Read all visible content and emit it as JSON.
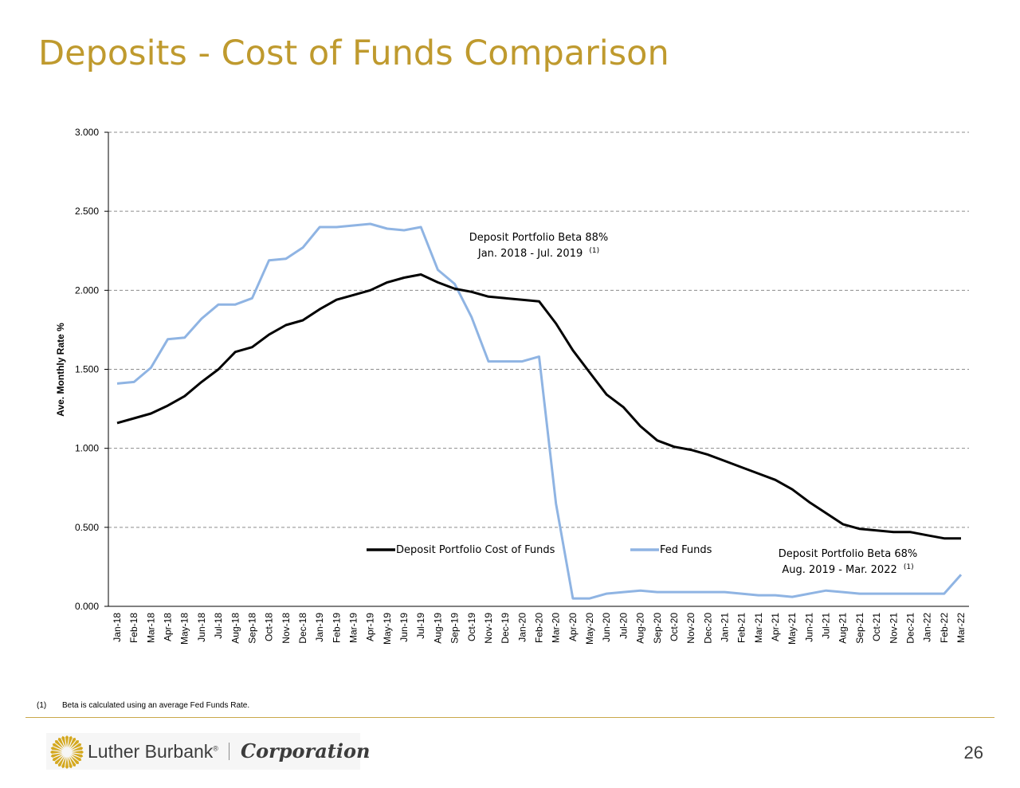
{
  "slide": {
    "title": "Deposits - Cost of Funds Comparison",
    "footnote_marker": "(1)",
    "footnote_text": "Beta is calculated using an average Fed Funds Rate.",
    "page_number": "26"
  },
  "logo": {
    "brand": "Luther Burbank",
    "registered": "®",
    "division": "Corporation"
  },
  "colors": {
    "title": "#bf9a2e",
    "deposit_series": "#000000",
    "fed_series": "#8fb4e3",
    "grid": "#8c8c8c",
    "divider": "#c9a84a"
  },
  "chart_data": {
    "type": "line",
    "title": "",
    "xlabel": "",
    "ylabel": "Ave. Monthly Rate %",
    "ylim": [
      0,
      3
    ],
    "yticks": [
      "0.000",
      "0.500",
      "1.000",
      "1.500",
      "2.000",
      "2.500",
      "3.000"
    ],
    "grid": "horizontal dashed",
    "legend_placement": "inside-bottom",
    "categories": [
      "Jan-18",
      "Feb-18",
      "Mar-18",
      "Apr-18",
      "May-18",
      "Jun-18",
      "Jul-18",
      "Aug-18",
      "Sep-18",
      "Oct-18",
      "Nov-18",
      "Dec-18",
      "Jan-19",
      "Feb-19",
      "Mar-19",
      "Apr-19",
      "May-19",
      "Jun-19",
      "Jul-19",
      "Aug-19",
      "Sep-19",
      "Oct-19",
      "Nov-19",
      "Dec-19",
      "Jan-20",
      "Feb-20",
      "Mar-20",
      "Apr-20",
      "May-20",
      "Jun-20",
      "Jul-20",
      "Aug-20",
      "Sep-20",
      "Oct-20",
      "Nov-20",
      "Dec-20",
      "Jan-21",
      "Feb-21",
      "Mar-21",
      "Apr-21",
      "May-21",
      "Jun-21",
      "Jul-21",
      "Aug-21",
      "Sep-21",
      "Oct-21",
      "Nov-21",
      "Dec-21",
      "Jan-22",
      "Feb-22",
      "Mar-22"
    ],
    "series": [
      {
        "name": "Deposit Portfolio Cost of Funds",
        "values": [
          1.16,
          1.19,
          1.22,
          1.27,
          1.33,
          1.42,
          1.5,
          1.61,
          1.64,
          1.72,
          1.78,
          1.81,
          1.88,
          1.94,
          1.97,
          2.0,
          2.05,
          2.08,
          2.1,
          2.05,
          2.01,
          1.99,
          1.96,
          1.95,
          1.94,
          1.93,
          1.79,
          1.62,
          1.48,
          1.34,
          1.26,
          1.14,
          1.05,
          1.01,
          0.99,
          0.96,
          0.92,
          0.88,
          0.84,
          0.8,
          0.74,
          0.66,
          0.59,
          0.52,
          0.49,
          0.48,
          0.47,
          0.47,
          0.45,
          0.43,
          0.43
        ]
      },
      {
        "name": "Fed Funds",
        "values": [
          1.41,
          1.42,
          1.51,
          1.69,
          1.7,
          1.82,
          1.91,
          1.91,
          1.95,
          2.19,
          2.2,
          2.27,
          2.4,
          2.4,
          2.41,
          2.42,
          2.39,
          2.38,
          2.4,
          2.13,
          2.04,
          1.83,
          1.55,
          1.55,
          1.55,
          1.58,
          0.65,
          0.05,
          0.05,
          0.08,
          0.09,
          0.1,
          0.09,
          0.09,
          0.09,
          0.09,
          0.09,
          0.08,
          0.07,
          0.07,
          0.06,
          0.08,
          0.1,
          0.09,
          0.08,
          0.08,
          0.08,
          0.08,
          0.08,
          0.08,
          0.2
        ]
      }
    ],
    "annotations": [
      {
        "line1": "Deposit Portfolio Beta 88%",
        "line2": "Jan. 2018 - Jul. 2019",
        "superscript": "(1)"
      },
      {
        "line1": "Deposit Portfolio Beta 68%",
        "line2": "Aug. 2019 - Mar. 2022",
        "superscript": "(1)"
      }
    ]
  }
}
